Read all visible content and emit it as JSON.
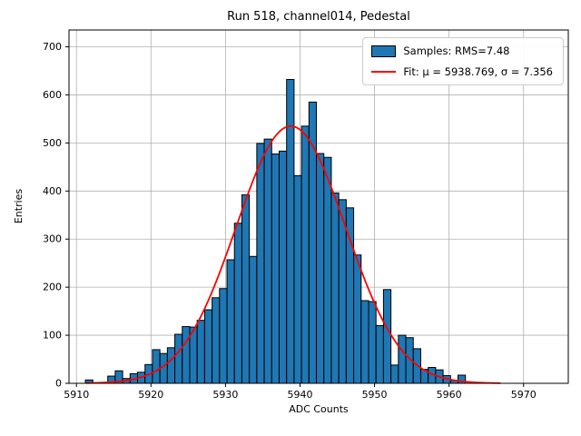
{
  "chart_data": {
    "type": "bar",
    "subtype": "histogram",
    "title": "Run 518, channel014, Pedestal",
    "xlabel": "ADC Counts",
    "ylabel": "Entries",
    "xlim": [
      5909.0,
      5976.0
    ],
    "ylim": [
      0,
      735
    ],
    "xticks": [
      5910,
      5920,
      5930,
      5940,
      5950,
      5960,
      5970
    ],
    "yticks": [
      0,
      100,
      200,
      300,
      400,
      500,
      600,
      700
    ],
    "grid": true,
    "legend_position": "upper right",
    "bin_width": 1.0,
    "bin_start": 5911.2,
    "counts": [
      7,
      0,
      0,
      15,
      26,
      10,
      20,
      23,
      39,
      70,
      62,
      74,
      102,
      118,
      117,
      131,
      153,
      178,
      197,
      257,
      333,
      392,
      264,
      499,
      508,
      477,
      483,
      632,
      432,
      535,
      585,
      478,
      470,
      396,
      382,
      365,
      267,
      172,
      170,
      120,
      195,
      38,
      100,
      95,
      72,
      29,
      33,
      28,
      16,
      6,
      17
    ],
    "fit": {
      "mu": 5938.769,
      "sigma": 7.356,
      "amplitude": 535,
      "x_range": [
        5911.3,
        5967.0
      ]
    },
    "colors": {
      "bar_fill": "#1f77b4",
      "bar_edge": "#000000",
      "fit_line": "#ff0000",
      "grid_line": "#b0b0b0",
      "spine": "#000000",
      "text": "#000000",
      "background": "#ffffff"
    },
    "legend": [
      {
        "label": "Samples: RMS=7.48",
        "swatch": "patch"
      },
      {
        "label": "Fit: μ = 5938.769, σ = 7.356",
        "swatch": "line"
      }
    ]
  }
}
